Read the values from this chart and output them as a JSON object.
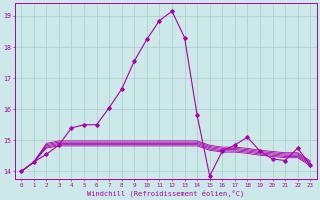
{
  "title": "",
  "xlabel": "Windchill (Refroidissement éolien,°C)",
  "bg_color": "#cce8e8",
  "grid_color": "#aacccc",
  "line_color": "#aa00aa",
  "x_ticks": [
    0,
    1,
    2,
    3,
    4,
    5,
    6,
    7,
    8,
    9,
    10,
    11,
    12,
    13,
    14,
    15,
    16,
    17,
    18,
    19,
    20,
    21,
    22,
    23
  ],
  "ylim": [
    13.75,
    19.4
  ],
  "yticks": [
    14,
    15,
    16,
    17,
    18,
    19
  ],
  "main_series": [
    14.0,
    14.3,
    14.55,
    14.85,
    15.4,
    15.5,
    15.5,
    16.05,
    16.65,
    17.55,
    18.25,
    18.85,
    19.15,
    18.3,
    15.8,
    13.85,
    14.65,
    14.85,
    15.1,
    14.65,
    14.4,
    14.35,
    14.75,
    14.2
  ],
  "flat_series": [
    [
      14.0,
      14.3,
      14.75,
      14.82,
      14.82,
      14.82,
      14.82,
      14.82,
      14.82,
      14.82,
      14.82,
      14.82,
      14.82,
      14.82,
      14.82,
      14.68,
      14.62,
      14.62,
      14.58,
      14.52,
      14.48,
      14.44,
      14.44,
      14.18
    ],
    [
      14.0,
      14.3,
      14.78,
      14.86,
      14.86,
      14.86,
      14.86,
      14.86,
      14.86,
      14.86,
      14.86,
      14.86,
      14.86,
      14.86,
      14.86,
      14.72,
      14.66,
      14.66,
      14.62,
      14.56,
      14.52,
      14.48,
      14.48,
      14.22
    ],
    [
      14.0,
      14.3,
      14.82,
      14.9,
      14.9,
      14.9,
      14.9,
      14.9,
      14.9,
      14.9,
      14.9,
      14.9,
      14.9,
      14.9,
      14.9,
      14.76,
      14.7,
      14.7,
      14.66,
      14.6,
      14.56,
      14.52,
      14.52,
      14.26
    ],
    [
      14.0,
      14.3,
      14.86,
      14.94,
      14.94,
      14.94,
      14.94,
      14.94,
      14.94,
      14.94,
      14.94,
      14.94,
      14.94,
      14.94,
      14.94,
      14.8,
      14.74,
      14.74,
      14.7,
      14.64,
      14.6,
      14.56,
      14.56,
      14.3
    ],
    [
      14.0,
      14.3,
      14.9,
      14.98,
      14.98,
      14.98,
      14.98,
      14.98,
      14.98,
      14.98,
      14.98,
      14.98,
      14.98,
      14.98,
      14.98,
      14.84,
      14.78,
      14.78,
      14.74,
      14.68,
      14.64,
      14.6,
      14.6,
      14.34
    ]
  ]
}
